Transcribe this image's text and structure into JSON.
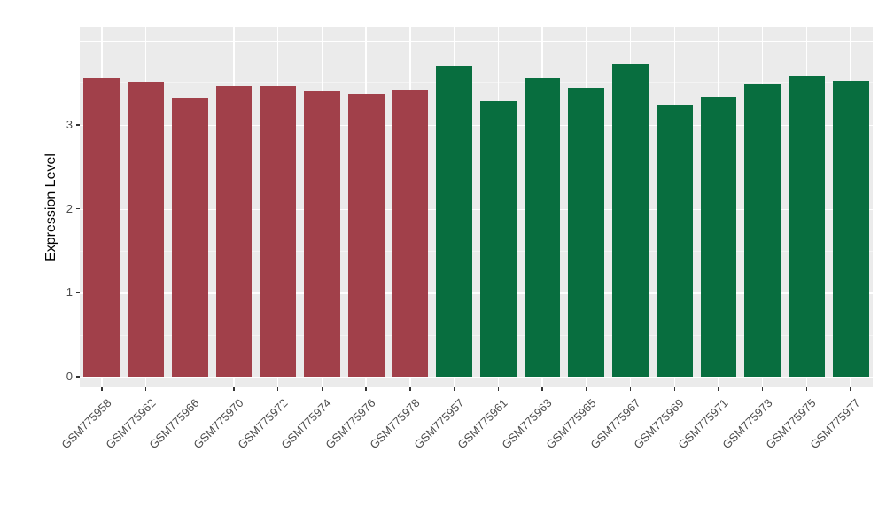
{
  "chart_data": {
    "type": "bar",
    "title": "",
    "xlabel": "",
    "ylabel": "Expression Level",
    "ylim": [
      0,
      4.17
    ],
    "yticks": [
      0,
      1,
      2,
      3
    ],
    "grid": "on",
    "legend": "none",
    "panel_background": "#EBEBEB",
    "categories": [
      "GSM775958",
      "GSM775962",
      "GSM775966",
      "GSM775970",
      "GSM775972",
      "GSM775974",
      "GSM775976",
      "GSM775978",
      "GSM775957",
      "GSM775961",
      "GSM775963",
      "GSM775965",
      "GSM775967",
      "GSM775969",
      "GSM775971",
      "GSM775973",
      "GSM775975",
      "GSM775977"
    ],
    "values": [
      3.56,
      3.51,
      3.31,
      3.46,
      3.46,
      3.4,
      3.37,
      3.41,
      3.71,
      3.28,
      3.56,
      3.44,
      3.73,
      3.24,
      3.33,
      3.48,
      3.58,
      3.53
    ],
    "groups": [
      "group1",
      "group1",
      "group1",
      "group1",
      "group1",
      "group1",
      "group1",
      "group1",
      "group2",
      "group2",
      "group2",
      "group2",
      "group2",
      "group2",
      "group2",
      "group2",
      "group2",
      "group2"
    ],
    "group_colors": {
      "group1": "#A1404A",
      "group2": "#086E3F"
    }
  }
}
